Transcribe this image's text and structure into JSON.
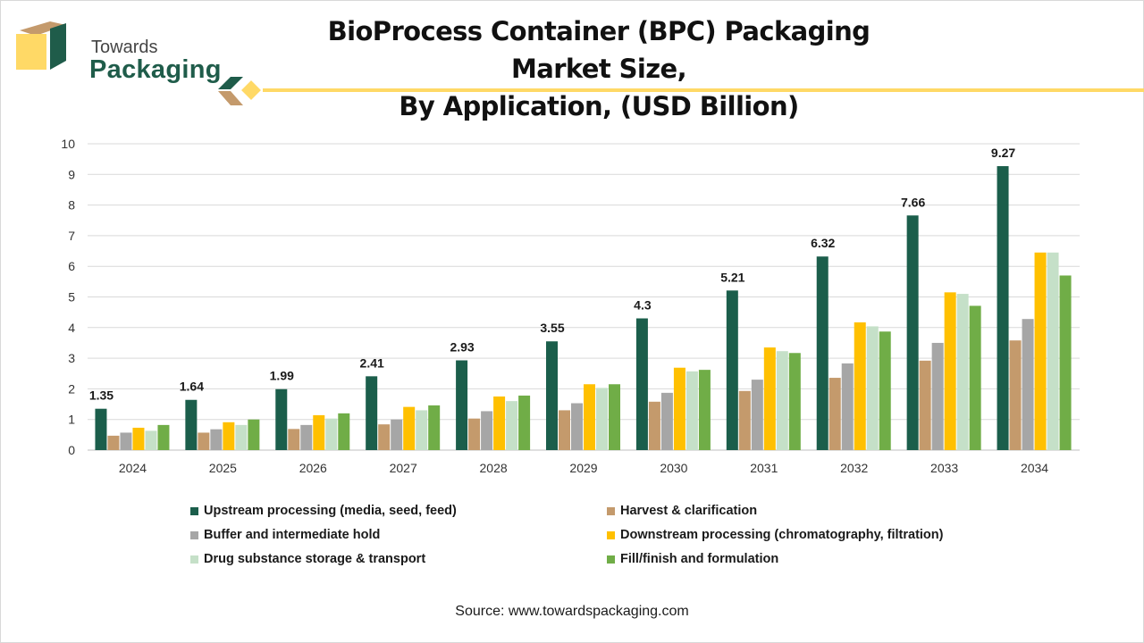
{
  "brand": {
    "line1": "Towards",
    "line2": "Packaging",
    "colors": {
      "dark_green": "#1f5c4a",
      "tan": "#c49a6c",
      "yellow": "#ffd966"
    }
  },
  "title": {
    "line1": "BioProcess Container (BPC) Packaging Market Size,",
    "line2": "By Application, (USD Billion)"
  },
  "source": "Source: www.towardspackaging.com",
  "chart_data": {
    "type": "bar",
    "categories": [
      "2024",
      "2025",
      "2026",
      "2027",
      "2028",
      "2029",
      "2030",
      "2031",
      "2032",
      "2033",
      "2034"
    ],
    "ylim": [
      0,
      10
    ],
    "yticks": [
      "0",
      "1",
      "2",
      "3",
      "4",
      "5",
      "6",
      "7",
      "8",
      "9",
      "10"
    ],
    "grid": true,
    "legend_position": "bottom",
    "series": [
      {
        "name": "Upstream processing (media, seed, feed)",
        "color": "#1b5e4b",
        "values": [
          1.35,
          1.64,
          1.99,
          2.41,
          2.93,
          3.55,
          4.3,
          5.21,
          6.32,
          7.66,
          9.27
        ],
        "labels": [
          "1.35",
          "1.64",
          "1.99",
          "2.41",
          "2.93",
          "3.55",
          "4.3",
          "5.21",
          "6.32",
          "7.66",
          "9.27"
        ]
      },
      {
        "name": "Harvest & clarification",
        "color": "#c49a6c",
        "values": [
          0.47,
          0.57,
          0.69,
          0.84,
          1.03,
          1.3,
          1.58,
          1.93,
          2.36,
          2.92,
          3.58
        ]
      },
      {
        "name": "Buffer and intermediate hold",
        "color": "#a6a6a6",
        "values": [
          0.57,
          0.68,
          0.82,
          1.0,
          1.27,
          1.53,
          1.87,
          2.3,
          2.83,
          3.5,
          4.28
        ]
      },
      {
        "name": "Downstream processing (chromatography, filtration)",
        "color": "#ffc000",
        "values": [
          0.73,
          0.91,
          1.14,
          1.41,
          1.75,
          2.15,
          2.69,
          3.35,
          4.17,
          5.15,
          6.45
        ]
      },
      {
        "name": "Drug substance storage & transport",
        "color": "#c5e0c8",
        "values": [
          0.63,
          0.82,
          1.03,
          1.3,
          1.6,
          2.03,
          2.57,
          3.23,
          4.04,
          5.1,
          6.45
        ]
      },
      {
        "name": "Fill/finish and formulation",
        "color": "#70ad47",
        "values": [
          0.82,
          1.0,
          1.2,
          1.46,
          1.78,
          2.15,
          2.62,
          3.17,
          3.87,
          4.71,
          5.7
        ]
      }
    ]
  }
}
